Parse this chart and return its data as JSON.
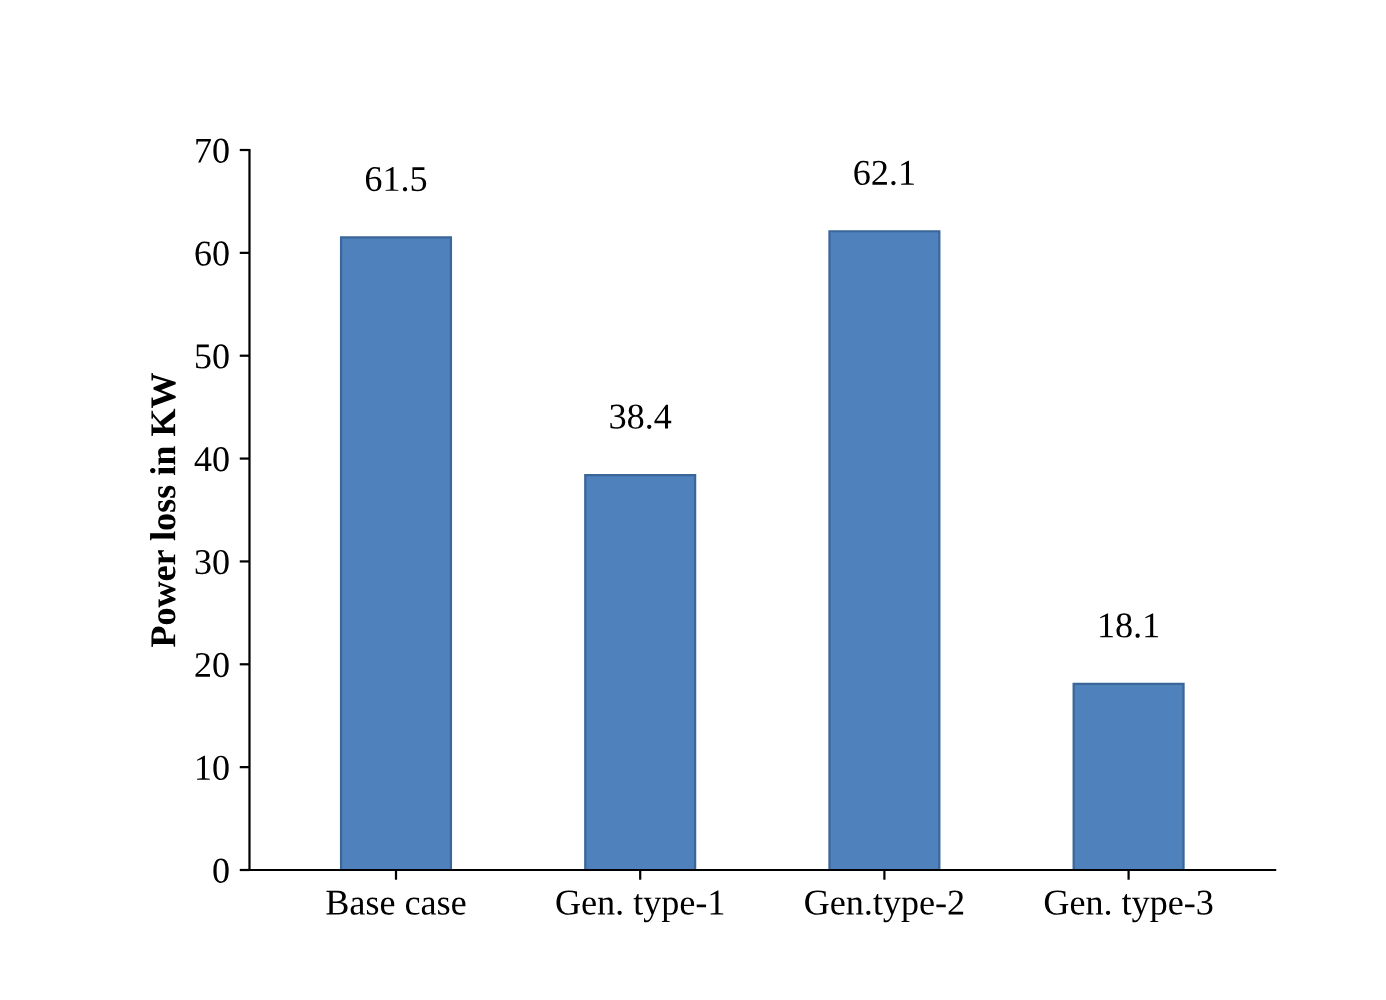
{
  "chart_data": {
    "type": "bar",
    "ylabel": "Power loss in KW",
    "categories": [
      "Base case",
      "Gen. type-1",
      "Gen.type-2",
      "Gen. type-3"
    ],
    "values": [
      61.5,
      38.4,
      62.1,
      18.1
    ],
    "color": "#4f81bd",
    "ylim": [
      0,
      70
    ],
    "yticks": [
      0,
      10,
      20,
      30,
      40,
      50,
      60,
      70
    ],
    "grid": false,
    "data_labels": true
  }
}
